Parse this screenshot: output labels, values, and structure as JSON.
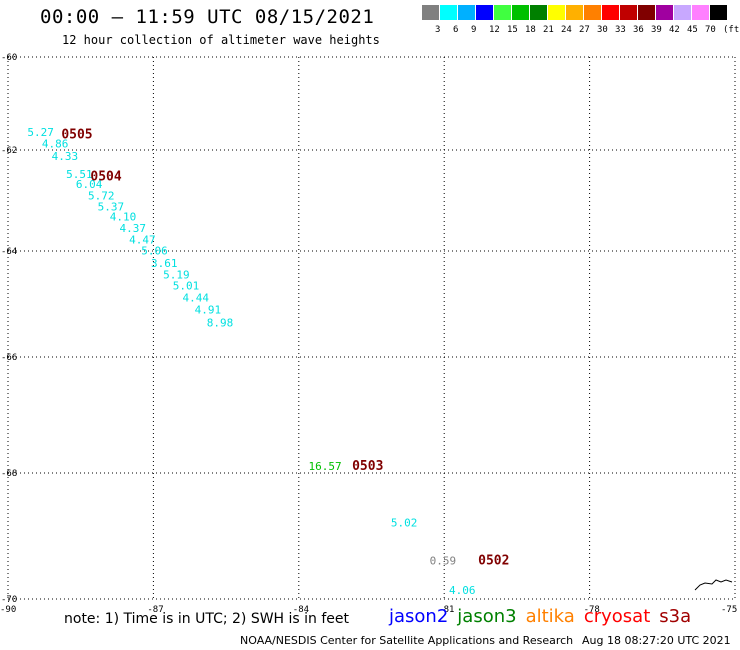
{
  "header": {
    "title": "00:00 – 11:59 UTC 08/15/2021",
    "subtitle": "12 hour collection of altimeter wave heights"
  },
  "colorbar": {
    "colors": [
      "#808080",
      "#00ffff",
      "#00b0ff",
      "#0000ff",
      "#40ff40",
      "#00c000",
      "#008000",
      "#ffff00",
      "#ffb000",
      "#ff8000",
      "#ff0000",
      "#c00000",
      "#800000",
      "#a000a0",
      "#c8a8ff",
      "#ff80ff",
      "#000000"
    ],
    "labels": [
      "3",
      "6",
      "9",
      "12",
      "15",
      "18",
      "21",
      "24",
      "27",
      "30",
      "33",
      "36",
      "39",
      "42",
      "45",
      "70",
      "(ft)"
    ]
  },
  "map": {
    "lat_ticks": [
      "-60",
      "-62",
      "-64",
      "-66",
      "-68",
      "-70"
    ],
    "lon_ticks": [
      "-90",
      "-87",
      "-84",
      "-81",
      "-78",
      "-75"
    ],
    "extent": {
      "lon_min": -90,
      "lon_max": -75,
      "lat_min": -70,
      "lat_max": -60
    },
    "observations": [
      {
        "text": "5.27",
        "lon": -89.6,
        "lat": -61.7,
        "color": "#00e0e0"
      },
      {
        "text": "4.86",
        "lon": -89.3,
        "lat": -61.95,
        "color": "#00e0e0"
      },
      {
        "text": "4.33",
        "lon": -89.1,
        "lat": -62.2,
        "color": "#00e0e0"
      },
      {
        "text": "5.51",
        "lon": -88.8,
        "lat": -62.55,
        "color": "#00e0e0"
      },
      {
        "text": "6.04",
        "lon": -88.6,
        "lat": -62.75,
        "color": "#00e0e0"
      },
      {
        "text": "5.72",
        "lon": -88.35,
        "lat": -62.98,
        "color": "#00e0e0"
      },
      {
        "text": "5.37",
        "lon": -88.15,
        "lat": -63.2,
        "color": "#00e0e0"
      },
      {
        "text": "4.10",
        "lon": -87.9,
        "lat": -63.4,
        "color": "#00e0e0"
      },
      {
        "text": "4.37",
        "lon": -87.7,
        "lat": -63.62,
        "color": "#00e0e0"
      },
      {
        "text": "4.47",
        "lon": -87.5,
        "lat": -63.85,
        "color": "#00e0e0"
      },
      {
        "text": "5.06",
        "lon": -87.25,
        "lat": -64.07,
        "color": "#00e0e0"
      },
      {
        "text": "3.61",
        "lon": -87.05,
        "lat": -64.3,
        "color": "#00e0e0"
      },
      {
        "text": "5.19",
        "lon": -86.8,
        "lat": -64.52,
        "color": "#00e0e0"
      },
      {
        "text": "5.01",
        "lon": -86.6,
        "lat": -64.73,
        "color": "#00e0e0"
      },
      {
        "text": "4.44",
        "lon": -86.4,
        "lat": -64.95,
        "color": "#00e0e0"
      },
      {
        "text": "4.91",
        "lon": -86.15,
        "lat": -65.18,
        "color": "#00e0e0"
      },
      {
        "text": "8.98",
        "lon": -85.9,
        "lat": -65.42,
        "color": "#00e0e0"
      },
      {
        "text": "16.57",
        "lon": -83.8,
        "lat": -67.95,
        "color": "#00c000"
      },
      {
        "text": "5.02",
        "lon": -82.1,
        "lat": -68.85,
        "color": "#00e0e0"
      },
      {
        "text": "0.59",
        "lon": -81.3,
        "lat": -69.45,
        "color": "#808080"
      },
      {
        "text": "4.06",
        "lon": -80.9,
        "lat": -69.92,
        "color": "#00e0e0"
      }
    ],
    "storm_labels": [
      {
        "text": "0505",
        "lon": -88.9,
        "lat": -61.75
      },
      {
        "text": "0504",
        "lon": -88.3,
        "lat": -62.6
      },
      {
        "text": "0503",
        "lon": -82.9,
        "lat": -67.95
      },
      {
        "text": "0502",
        "lon": -80.3,
        "lat": -69.45
      }
    ]
  },
  "note": "note: 1) Time is in UTC; 2) SWH is in feet",
  "satellites": [
    {
      "name": "jason2",
      "color": "#0000ff"
    },
    {
      "name": "jason3",
      "color": "#008000"
    },
    {
      "name": "altika",
      "color": "#ff8000"
    },
    {
      "name": "cryosat",
      "color": "#ff0000"
    },
    {
      "name": "s3a",
      "color": "#a00000"
    }
  ],
  "footer": {
    "source": "NOAA/NESDIS Center for Satellite Applications and Research",
    "generated": "Aug 18 08:27:20 UTC 2021"
  },
  "colors": {
    "storm_label": "#800000"
  }
}
